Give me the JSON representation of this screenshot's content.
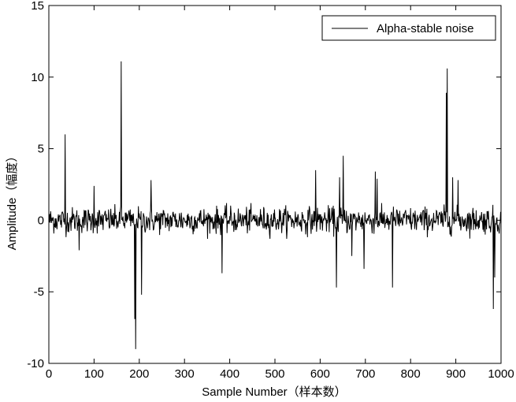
{
  "chart_data": {
    "type": "line",
    "title": "",
    "xlabel": "Sample Number（样本数）",
    "ylabel": "Amplitude（幅度）",
    "xlim": [
      0,
      1000
    ],
    "ylim": [
      -10,
      15
    ],
    "xticks": [
      0,
      100,
      200,
      300,
      400,
      500,
      600,
      700,
      800,
      900,
      1000
    ],
    "yticks": [
      -10,
      -5,
      0,
      5,
      10,
      15
    ],
    "xtick_labels": [
      "0",
      "100",
      "200",
      "300",
      "400",
      "500",
      "600",
      "700",
      "800",
      "900",
      "1000"
    ],
    "ytick_labels": [
      "-10",
      "-5",
      "0",
      "5",
      "10",
      "15"
    ],
    "grid": false,
    "legend_position": "top-right",
    "series": [
      {
        "name": "Alpha-stable noise",
        "color": "#000000",
        "num_samples": 1000,
        "noise_amplitude": 0.45,
        "spikes": [
          {
            "x": 36,
            "y": 6.0
          },
          {
            "x": 67,
            "y": -2.1
          },
          {
            "x": 100,
            "y": 2.4
          },
          {
            "x": 160,
            "y": 11.1
          },
          {
            "x": 190,
            "y": -6.9
          },
          {
            "x": 192,
            "y": -9.0
          },
          {
            "x": 205,
            "y": -5.2
          },
          {
            "x": 226,
            "y": 2.8
          },
          {
            "x": 383,
            "y": -3.7
          },
          {
            "x": 590,
            "y": 3.5
          },
          {
            "x": 636,
            "y": -4.7
          },
          {
            "x": 643,
            "y": 3.0
          },
          {
            "x": 651,
            "y": 4.5
          },
          {
            "x": 670,
            "y": -2.5
          },
          {
            "x": 697,
            "y": -3.4
          },
          {
            "x": 722,
            "y": 3.4
          },
          {
            "x": 726,
            "y": 2.9
          },
          {
            "x": 760,
            "y": -4.7
          },
          {
            "x": 879,
            "y": 8.9
          },
          {
            "x": 881,
            "y": 10.6
          },
          {
            "x": 893,
            "y": 3.0
          },
          {
            "x": 905,
            "y": 2.8
          },
          {
            "x": 983,
            "y": -6.2
          },
          {
            "x": 986,
            "y": -4.0
          }
        ]
      }
    ]
  }
}
